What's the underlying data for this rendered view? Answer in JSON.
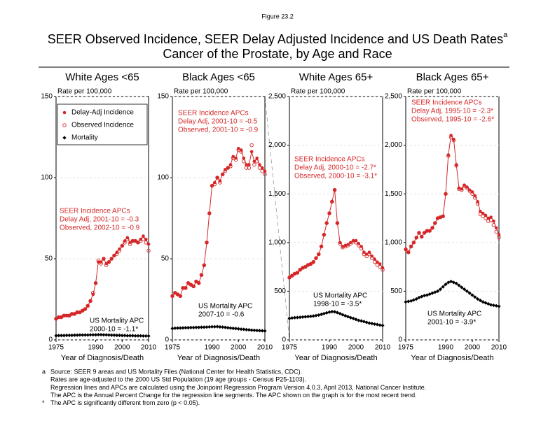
{
  "figure_label": "Figure 23.2",
  "title": "SEER Observed Incidence, SEER Delay Adjusted Incidence and US Death Rates",
  "title_note": "a",
  "subtitle": "Cancer of the Prostate, by Age and Race",
  "chart_data": [
    {
      "type": "line",
      "title": "White Ages <65",
      "y_label": "Rate per 100,000",
      "x_label": "Year of Diagnosis/Death",
      "xlim": [
        1975,
        2010
      ],
      "xticks": [
        1975,
        1990,
        2000,
        2010
      ],
      "ylim": [
        0,
        150
      ],
      "yticks": [
        0,
        50,
        100,
        150
      ],
      "legend": "upper left",
      "x": [
        1975,
        1976,
        1977,
        1978,
        1979,
        1980,
        1981,
        1982,
        1983,
        1984,
        1985,
        1986,
        1987,
        1988,
        1989,
        1990,
        1991,
        1992,
        1993,
        1994,
        1995,
        1996,
        1997,
        1998,
        1999,
        2000,
        2001,
        2002,
        2003,
        2004,
        2005,
        2006,
        2007,
        2008,
        2009,
        2010
      ],
      "series": [
        {
          "name": "Delay-Adj Incidence",
          "color": "#d62728",
          "marker": "filled",
          "values": [
            13,
            14,
            14,
            15,
            15,
            15,
            16,
            16,
            17,
            17,
            18,
            19,
            21,
            24,
            28,
            35,
            48,
            48,
            50,
            47,
            48,
            50,
            52,
            54,
            56,
            58,
            61,
            63,
            60,
            61,
            61,
            60,
            62,
            64,
            62,
            59
          ]
        },
        {
          "name": "Observed Incidence",
          "color": "#d62728",
          "marker": "open",
          "values": [
            13,
            14,
            14,
            15,
            15,
            15,
            16,
            16,
            17,
            17,
            18,
            19,
            21,
            24,
            29,
            35,
            49,
            47,
            50,
            46,
            48,
            50,
            52,
            53,
            55,
            58,
            60,
            62,
            59,
            61,
            61,
            60,
            61,
            62,
            60,
            55
          ]
        },
        {
          "name": "Mortality",
          "color": "#000000",
          "marker": "diamond",
          "values": [
            2.6,
            2.7,
            2.7,
            2.7,
            2.8,
            2.8,
            2.8,
            2.9,
            2.9,
            3,
            3,
            3,
            3,
            3.1,
            3.1,
            3.1,
            3.2,
            3.2,
            3.1,
            3.1,
            3,
            2.9,
            2.9,
            2.8,
            2.8,
            2.7,
            2.7,
            2.6,
            2.6,
            2.6,
            2.5,
            2.5,
            2.5,
            2.4,
            2.4,
            2.4
          ]
        }
      ],
      "annotations": [
        {
          "color": "#d62728",
          "lines": [
            "SEER Incidence APCs",
            "Delay Adj, 2001-10 = -0.3",
            "Observed, 2002-10 = -0.9"
          ]
        },
        {
          "color": "#000000",
          "lines": [
            "US Mortality APC",
            "2000-10 = -1.1*"
          ]
        }
      ]
    },
    {
      "type": "line",
      "title": "Black Ages <65",
      "y_label": "Rate per 100,000",
      "x_label": "Year of Diagnosis/Death",
      "xlim": [
        1975,
        2010
      ],
      "xticks": [
        1975,
        1990,
        2000,
        2010
      ],
      "ylim": [
        0,
        150
      ],
      "yticks": [
        0,
        50,
        100,
        150
      ],
      "x": [
        1975,
        1976,
        1977,
        1978,
        1979,
        1980,
        1981,
        1982,
        1983,
        1984,
        1985,
        1986,
        1987,
        1988,
        1989,
        1990,
        1991,
        1992,
        1993,
        1994,
        1995,
        1996,
        1997,
        1998,
        1999,
        2000,
        2001,
        2002,
        2003,
        2004,
        2005,
        2006,
        2007,
        2008,
        2009,
        2010
      ],
      "series": [
        {
          "color": "#d62728",
          "marker": "filled",
          "values": [
            27,
            29,
            28,
            27,
            32,
            32,
            35,
            34,
            33,
            36,
            35,
            40,
            46,
            60,
            78,
            95,
            97,
            100,
            98,
            102,
            105,
            106,
            108,
            113,
            112,
            118,
            117,
            112,
            108,
            108,
            116,
            110,
            112,
            108,
            106,
            104
          ]
        },
        {
          "color": "#d62728",
          "marker": "open",
          "values": [
            27,
            29,
            28,
            27,
            32,
            32,
            35,
            34,
            33,
            36,
            35,
            40,
            46,
            60,
            78,
            95,
            96,
            100,
            97,
            102,
            104,
            106,
            107,
            112,
            111,
            117,
            116,
            110,
            106,
            106,
            120,
            108,
            110,
            106,
            104,
            102
          ]
        },
        {
          "color": "#000000",
          "marker": "diamond",
          "values": [
            7,
            7.2,
            7.3,
            7.3,
            7.4,
            7.5,
            7.5,
            7.6,
            7.6,
            7.7,
            7.7,
            7.8,
            7.8,
            7.9,
            8,
            8.1,
            8.1,
            8.2,
            8,
            7.9,
            7.7,
            7.5,
            7.3,
            7.1,
            7,
            6.8,
            6.6,
            6.5,
            6.3,
            6.2,
            6,
            5.9,
            5.8,
            5.7,
            5.6,
            5.5
          ]
        }
      ],
      "annotations": [
        {
          "color": "#d62728",
          "lines": [
            "SEER Incidence APCs",
            "Delay Adj, 2001-10 = -0.5",
            "Observed, 2001-10 = -0.9"
          ]
        },
        {
          "color": "#000000",
          "lines": [
            "US Mortality APC",
            "2007-10 = -0.6"
          ]
        }
      ]
    },
    {
      "type": "line",
      "title": "White Ages 65+",
      "y_label": "Rate per 100,000",
      "x_label": "Year of Diagnosis/Death",
      "xlim": [
        1975,
        2010
      ],
      "xticks": [
        1975,
        1990,
        2000,
        2010
      ],
      "ylim": [
        0,
        2500
      ],
      "yticks": [
        0,
        500,
        {
          "value": 1000,
          "label": "1,000"
        },
        {
          "value": 1500,
          "label": "1,500"
        },
        {
          "value": 2000,
          "label": "2,000"
        },
        {
          "value": 2500,
          "label": "2,500"
        }
      ],
      "x": [
        1975,
        1976,
        1977,
        1978,
        1979,
        1980,
        1981,
        1982,
        1983,
        1984,
        1985,
        1986,
        1987,
        1988,
        1989,
        1990,
        1991,
        1992,
        1993,
        1994,
        1995,
        1996,
        1997,
        1998,
        1999,
        2000,
        2001,
        2002,
        2003,
        2004,
        2005,
        2006,
        2007,
        2008,
        2009,
        2010
      ],
      "series": [
        {
          "color": "#d62728",
          "marker": "filled",
          "values": [
            640,
            660,
            680,
            690,
            720,
            740,
            750,
            770,
            780,
            800,
            840,
            880,
            960,
            1080,
            1200,
            1300,
            1420,
            1540,
            1200,
            1000,
            960,
            970,
            980,
            1000,
            1020,
            1020,
            990,
            960,
            900,
            880,
            900,
            860,
            830,
            800,
            780,
            740
          ]
        },
        {
          "color": "#d62728",
          "marker": "open",
          "values": [
            640,
            660,
            680,
            690,
            720,
            740,
            750,
            770,
            780,
            800,
            840,
            880,
            960,
            1080,
            1200,
            1300,
            1420,
            1540,
            1200,
            990,
            950,
            960,
            970,
            990,
            1010,
            1000,
            970,
            940,
            880,
            860,
            880,
            840,
            800,
            770,
            750,
            720
          ]
        },
        {
          "color": "#000000",
          "marker": "diamond",
          "values": [
            220,
            225,
            228,
            230,
            232,
            235,
            237,
            240,
            242,
            245,
            250,
            255,
            262,
            270,
            278,
            285,
            290,
            288,
            280,
            270,
            258,
            248,
            238,
            228,
            220,
            210,
            200,
            195,
            188,
            180,
            172,
            168,
            162,
            158,
            152,
            148
          ]
        }
      ],
      "annotations": [
        {
          "color": "#d62728",
          "lines": [
            "SEER Incidence APCs",
            "Delay Adj, 2000-10 = -2.7*",
            "Observed, 2000-10 = -3.1*"
          ]
        },
        {
          "color": "#000000",
          "lines": [
            "US Mortality APC",
            "1998-10 = -3.5*"
          ]
        }
      ]
    },
    {
      "type": "line",
      "title": "Black Ages 65+",
      "y_label": "Rate per 100,000",
      "x_label": "Year of Diagnosis/Death",
      "xlim": [
        1975,
        2010
      ],
      "xticks": [
        1975,
        1990,
        2000,
        2010
      ],
      "ylim": [
        0,
        2500
      ],
      "yticks": [
        0,
        500,
        {
          "value": 1000,
          "label": "1,000"
        },
        {
          "value": 1500,
          "label": "1,500"
        },
        {
          "value": 2000,
          "label": "2,000"
        },
        {
          "value": 2500,
          "label": "2,500"
        }
      ],
      "x": [
        1975,
        1976,
        1977,
        1978,
        1979,
        1980,
        1981,
        1982,
        1983,
        1984,
        1985,
        1986,
        1987,
        1988,
        1989,
        1990,
        1991,
        1992,
        1993,
        1994,
        1995,
        1996,
        1997,
        1998,
        1999,
        2000,
        2001,
        2002,
        2003,
        2004,
        2005,
        2006,
        2007,
        2008,
        2009,
        2010
      ],
      "series": [
        {
          "color": "#d62728",
          "marker": "filled",
          "values": [
            930,
            900,
            960,
            1000,
            1050,
            1100,
            1060,
            1100,
            1120,
            1120,
            1150,
            1200,
            1250,
            1260,
            1270,
            1500,
            1900,
            2100,
            2060,
            1800,
            1560,
            1550,
            1590,
            1570,
            1540,
            1520,
            1480,
            1420,
            1320,
            1300,
            1280,
            1250,
            1260,
            1220,
            1150,
            1080
          ]
        },
        {
          "color": "#d62728",
          "marker": "open",
          "values": [
            930,
            900,
            960,
            1000,
            1050,
            1100,
            1060,
            1100,
            1120,
            1120,
            1150,
            1200,
            1250,
            1260,
            1270,
            1500,
            1890,
            2080,
            2050,
            1790,
            1550,
            1540,
            1580,
            1560,
            1530,
            1500,
            1460,
            1400,
            1290,
            1270,
            1250,
            1220,
            1230,
            1180,
            1110,
            1050
          ]
        },
        {
          "color": "#000000",
          "marker": "diamond",
          "values": [
            390,
            395,
            400,
            410,
            420,
            435,
            445,
            455,
            460,
            470,
            480,
            490,
            500,
            520,
            545,
            570,
            590,
            600,
            590,
            580,
            560,
            540,
            520,
            500,
            480,
            460,
            440,
            420,
            405,
            390,
            380,
            370,
            360,
            355,
            350,
            345
          ]
        }
      ],
      "annotations": [
        {
          "color": "#d62728",
          "lines": [
            "SEER Incidence APCs",
            "Delay Adj, 1995-10 = -2.3*",
            "Observed, 1995-10 = -2.6*"
          ]
        },
        {
          "color": "#000000",
          "lines": [
            "US Mortality APC",
            "2001-10 = -3.9*"
          ]
        }
      ]
    }
  ],
  "footnotes": [
    {
      "mark": "a",
      "lines": [
        "Source: SEER 9 areas and US Mortality Files (National Center for Health Statistics, CDC).",
        "Rates are age-adjusted to the 2000 US Std Population (19 age groups - Census P25-1103).",
        "Regression lines and APCs are calculated using the Joinpoint Regression Program Version 4.0.3, April 2013, National Cancer Institute.",
        "The APC is the Annual Percent Change for the regression line segments. The APC shown on the graph is for the most recent trend."
      ]
    },
    {
      "mark": "*",
      "lines": [
        "The APC is significantly different from zero (p < 0.05)."
      ]
    }
  ]
}
